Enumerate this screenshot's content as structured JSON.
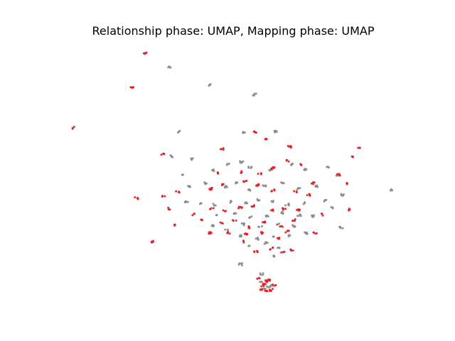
{
  "chart_data": {
    "type": "scatter",
    "title": "Relationship phase: UMAP, Mapping phase: UMAP",
    "xlabel": "",
    "ylabel": "",
    "axes_visible": false,
    "grid": false,
    "series": [
      {
        "color": "#888888",
        "points": [
          [
            238,
            95
          ],
          [
            295,
            120
          ],
          [
            358,
            133
          ],
          [
            252,
            185
          ],
          [
            343,
            187
          ],
          [
            388,
            185
          ],
          [
            242,
            220
          ],
          [
            270,
            224
          ],
          [
            255,
            245
          ],
          [
            300,
            240
          ],
          [
            320,
            232
          ],
          [
            340,
            228
          ],
          [
            352,
            236
          ],
          [
            381,
            240
          ],
          [
            412,
            232
          ],
          [
            430,
            238
          ],
          [
            462,
            236
          ],
          [
            475,
            246
          ],
          [
            265,
            262
          ],
          [
            288,
            258
          ],
          [
            317,
            263
          ],
          [
            333,
            258
          ],
          [
            350,
            268
          ],
          [
            372,
            262
          ],
          [
            398,
            258
          ],
          [
            420,
            266
          ],
          [
            446,
            262
          ],
          [
            482,
            274
          ],
          [
            551,
            267
          ],
          [
            262,
            284
          ],
          [
            282,
            286
          ],
          [
            302,
            288
          ],
          [
            326,
            284
          ],
          [
            346,
            286
          ],
          [
            364,
            282
          ],
          [
            384,
            284
          ],
          [
            404,
            288
          ],
          [
            428,
            286
          ],
          [
            458,
            283
          ],
          [
            468,
            292
          ],
          [
            306,
            304
          ],
          [
            330,
            300
          ],
          [
            352,
            306
          ],
          [
            376,
            304
          ],
          [
            398,
            300
          ],
          [
            421,
            303
          ],
          [
            440,
            304
          ],
          [
            300,
            318
          ],
          [
            318,
            324
          ],
          [
            342,
            316
          ],
          [
            366,
            320
          ],
          [
            392,
            316
          ],
          [
            414,
            318
          ],
          [
            430,
            328
          ],
          [
            480,
            320
          ],
          [
            338,
            332
          ],
          [
            362,
            336
          ],
          [
            386,
            334
          ],
          [
            408,
            332
          ],
          [
            352,
            346
          ],
          [
            374,
            342
          ],
          [
            392,
            348
          ],
          [
            384,
            360
          ],
          [
            338,
            372
          ],
          [
            368,
            386
          ],
          [
            376,
            395
          ],
          [
            382,
            402
          ],
          [
            372,
            407
          ],
          [
            378,
            404
          ],
          [
            366,
            398
          ]
        ]
      },
      {
        "color": "#e31a1c",
        "points": [
          [
            204,
            75
          ],
          [
            186,
            122
          ],
          [
            103,
            180
          ],
          [
            359,
            186
          ],
          [
            375,
            195
          ],
          [
            229,
            217
          ],
          [
            312,
            210
          ],
          [
            407,
            207
          ],
          [
            496,
            221
          ],
          [
            505,
            208
          ],
          [
            308,
            244
          ],
          [
            340,
            242
          ],
          [
            365,
            244
          ],
          [
            384,
            236
          ],
          [
            404,
            226
          ],
          [
            424,
            232
          ],
          [
            440,
            258
          ],
          [
            476,
            246
          ],
          [
            192,
            279
          ],
          [
            230,
            276
          ],
          [
            250,
            270
          ],
          [
            296,
            266
          ],
          [
            312,
            260
          ],
          [
            345,
            256
          ],
          [
            362,
            260
          ],
          [
            384,
            268
          ],
          [
            416,
            270
          ],
          [
            434,
            274
          ],
          [
            488,
            258
          ],
          [
            237,
            294
          ],
          [
            273,
            302
          ],
          [
            298,
            294
          ],
          [
            316,
            296
          ],
          [
            338,
            292
          ],
          [
            356,
            290
          ],
          [
            382,
            296
          ],
          [
            400,
            294
          ],
          [
            420,
            296
          ],
          [
            454,
            302
          ],
          [
            492,
            295
          ],
          [
            244,
            316
          ],
          [
            282,
            310
          ],
          [
            296,
            328
          ],
          [
            312,
            314
          ],
          [
            330,
            310
          ],
          [
            350,
            320
          ],
          [
            372,
            312
          ],
          [
            396,
            318
          ],
          [
            414,
            310
          ],
          [
            443,
            328
          ],
          [
            213,
            340
          ],
          [
            322,
            328
          ],
          [
            346,
            330
          ],
          [
            370,
            328
          ],
          [
            392,
            336
          ],
          [
            404,
            326
          ],
          [
            344,
            340
          ],
          [
            360,
            354
          ],
          [
            382,
            350
          ],
          [
            398,
            356
          ],
          [
            410,
            352
          ],
          [
            364,
            392
          ],
          [
            370,
            402
          ],
          [
            376,
            396
          ],
          [
            382,
            408
          ],
          [
            386,
            402
          ],
          [
            374,
            410
          ],
          [
            368,
            408
          ],
          [
            380,
            394
          ],
          [
            372,
            400
          ]
        ]
      }
    ]
  }
}
